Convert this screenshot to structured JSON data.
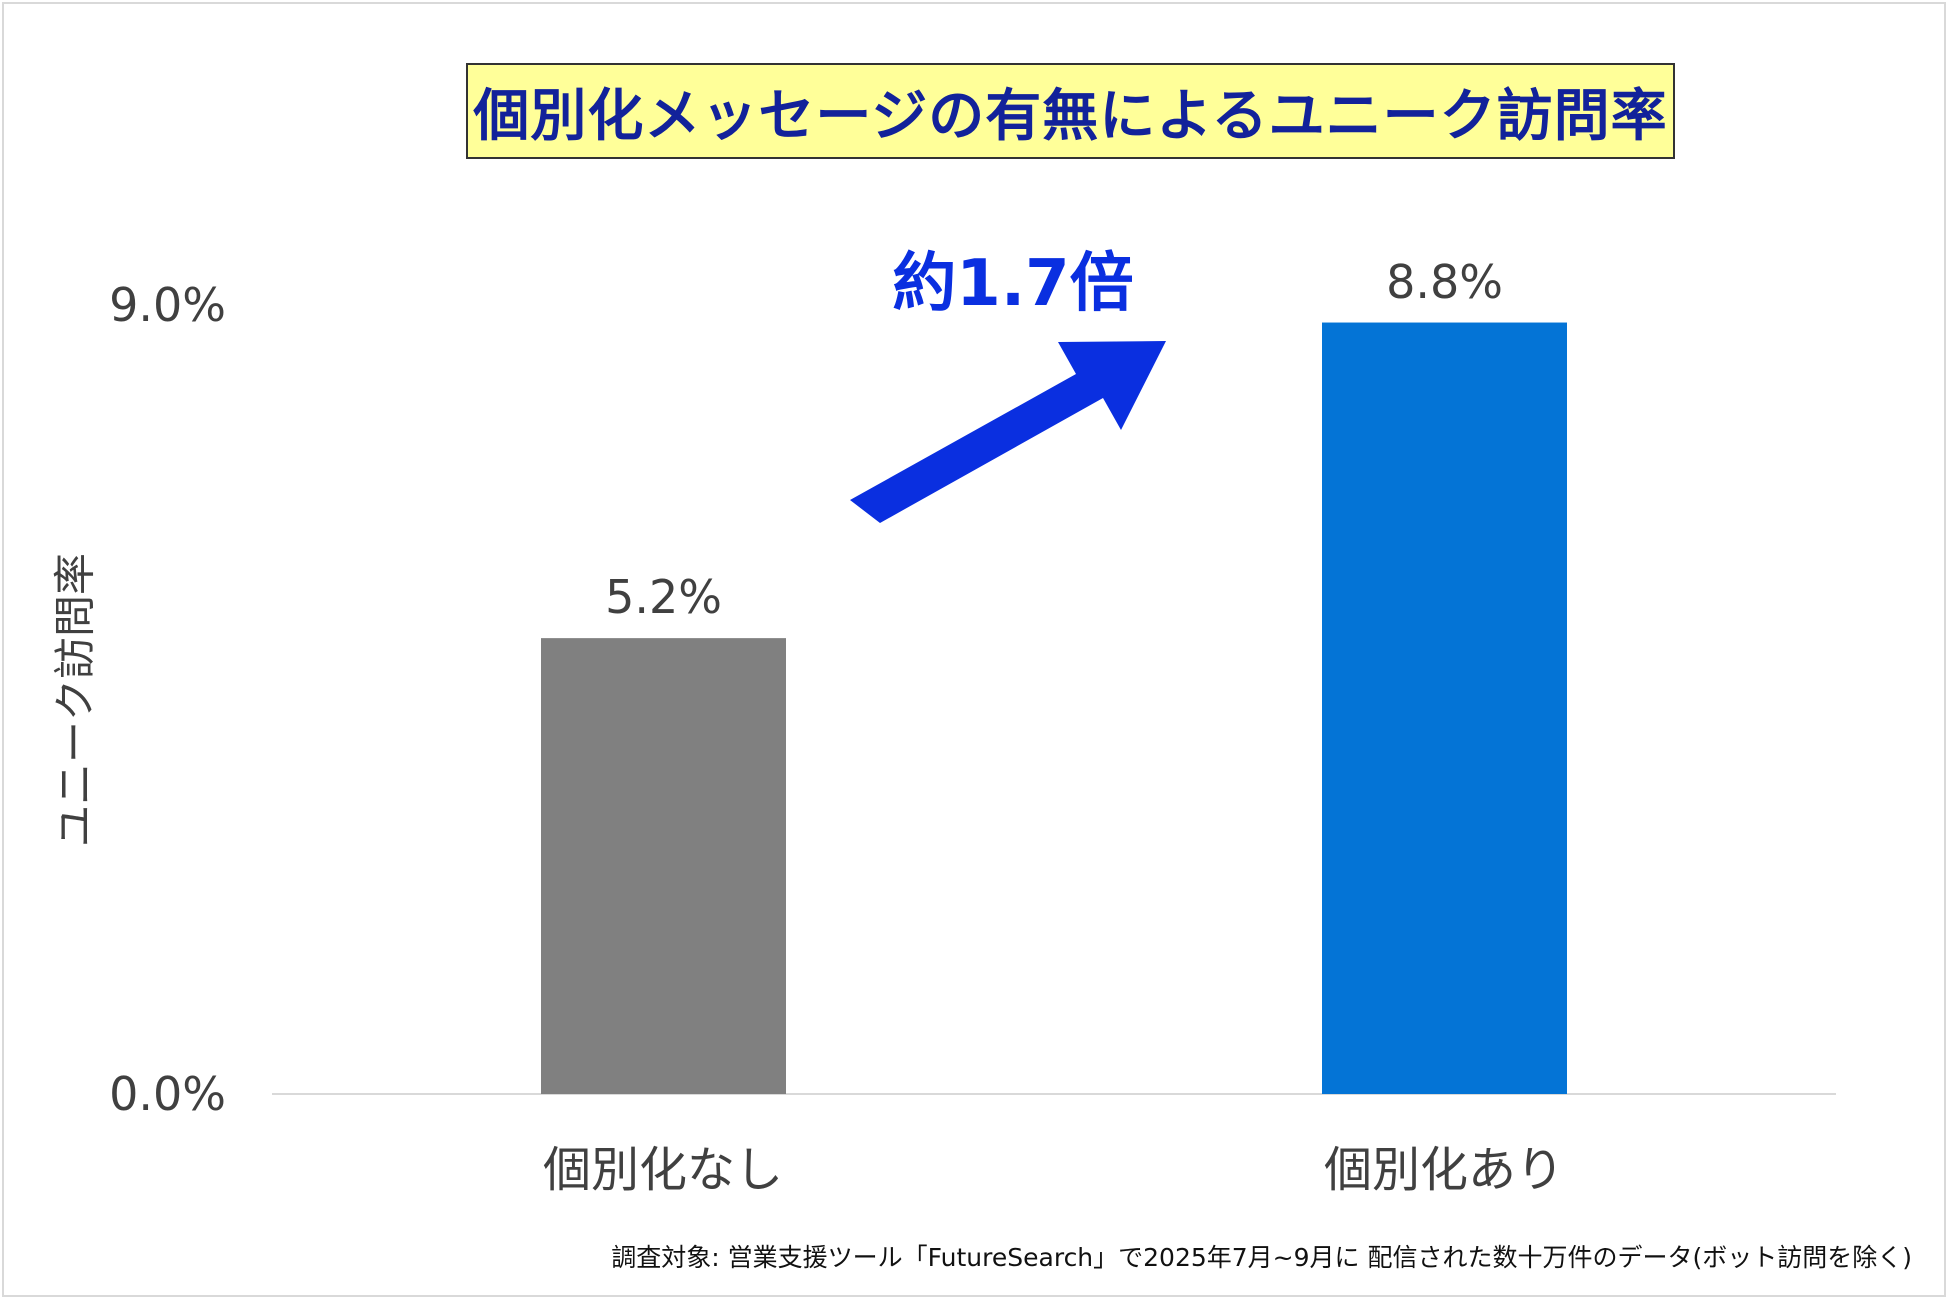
{
  "chart_data": {
    "type": "bar",
    "title": "個別化メッセージの有無によるユニーク訪問率",
    "ylabel": "ユニーク訪問率",
    "xlabel": "",
    "categories": [
      "個別化なし",
      "個別化あり"
    ],
    "values": [
      5.2,
      8.8
    ],
    "value_labels": [
      "5.2%",
      "8.8%"
    ],
    "bar_colors": [
      "#808080",
      "#0474d6"
    ],
    "ylim": [
      0,
      9.0
    ],
    "y_ticks": [
      0,
      9.0
    ],
    "y_tick_labels": [
      "0.0%",
      "9.0%"
    ],
    "grid": false,
    "legend": "none",
    "annotation": {
      "text": "約1.7倍",
      "color": "#0a2fe0",
      "arrow": "up-right from first bar toward second bar"
    },
    "footnote": "調査対象: 営業支援ツール「FutureSearch」で2025年7月~9月に 配信された数十万件のデータ(ボット訪問を除く)"
  },
  "colors": {
    "title_background": "#ffff99",
    "title_text": "#12229a",
    "axis_line": "#d9d9d9",
    "arrow": "#0a2fe0"
  }
}
